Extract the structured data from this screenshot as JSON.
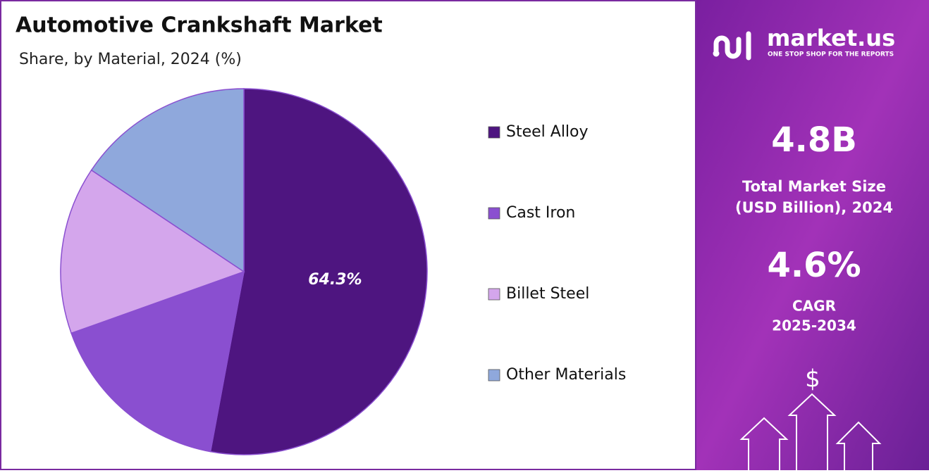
{
  "chart_data": {
    "type": "pie",
    "title": "Automotive Crankshaft Market",
    "subtitle": "Share, by Material, 2024 (%)",
    "categories": [
      "Steel Alloy",
      "Cast Iron",
      "Billet Steel",
      "Other Materials"
    ],
    "values": [
      64.3,
      20.2,
      18.0,
      19.0
    ],
    "value_labels": [
      "64.3%",
      null,
      null,
      null
    ],
    "colors": [
      "#4e1580",
      "#8a4fd0",
      "#d4a6ec",
      "#8fa8dc"
    ],
    "legend": "right"
  },
  "side_panel": {
    "brand": "market.us",
    "tagline": "ONE STOP SHOP FOR THE REPORTS",
    "market_size": "4.8B",
    "market_size_label": [
      "Total Market Size",
      "(USD Billion), 2024"
    ],
    "cagr": "4.6%",
    "cagr_label": [
      "CAGR",
      "2025-2034"
    ],
    "currency_symbol": "$"
  }
}
